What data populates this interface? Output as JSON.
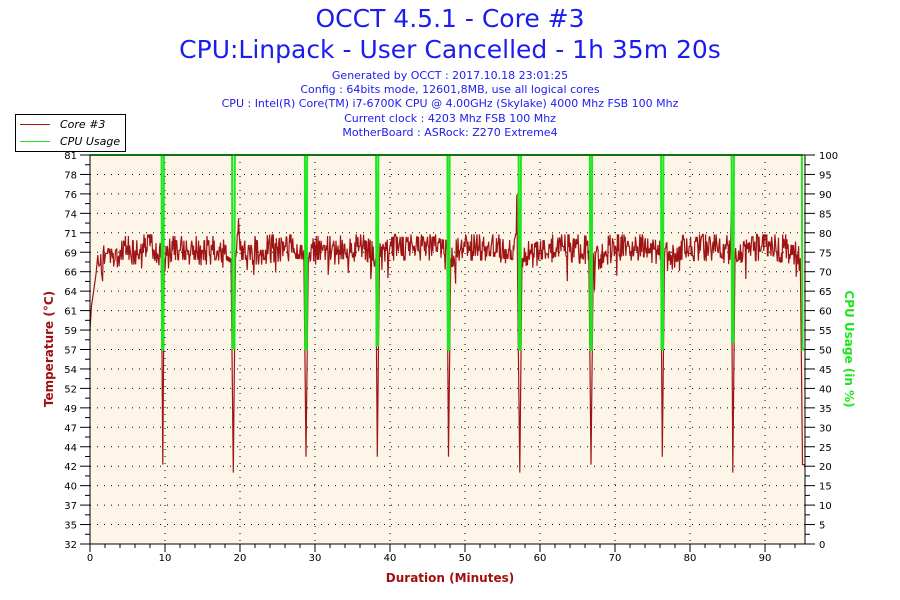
{
  "title": "OCCT 4.5.1 - Core #3",
  "subtitle": "CPU:Linpack - User Cancelled - 1h 35m 20s",
  "info": [
    "Generated by OCCT : 2017.10.18 23:01:25",
    "Config : 64bits mode, 12601,8MB, use all logical cores",
    "CPU : Intel(R) Core(TM) i7-6700K CPU @ 4.00GHz (Skylake) 4000 Mhz FSB 100 Mhz",
    "Current clock : 4203 Mhz FSB 100 Mhz",
    "MotherBoard : ASRock: Z270 Extreme4"
  ],
  "colors": {
    "temp": "#9e1414",
    "cpu": "#1ee61e",
    "text": "#1c1cf0",
    "plot_bg": "#fdf6e8"
  },
  "chart_data": {
    "type": "line",
    "xlabel": "Duration (Minutes)",
    "ylabel": "Temperature (°C)",
    "y2label": "CPU Usage (in %)",
    "xlim": [
      0,
      95.33
    ],
    "ylim": [
      32,
      81
    ],
    "y2lim": [
      0,
      100
    ],
    "grid": true,
    "legend_position": "top-left",
    "x_ticks": [
      "0",
      "10",
      "20",
      "30",
      "40",
      "50",
      "60",
      "70",
      "80",
      "90"
    ],
    "y_ticks": [
      "81",
      "78",
      "76",
      "74",
      "71",
      "69",
      "66",
      "64",
      "61",
      "59",
      "57",
      "54",
      "52",
      "49",
      "47",
      "44",
      "42",
      "40",
      "37",
      "35",
      "32"
    ],
    "y2_ticks": [
      "100",
      "95",
      "90",
      "85",
      "80",
      "75",
      "70",
      "65",
      "60",
      "55",
      "50",
      "45",
      "40",
      "35",
      "30",
      "25",
      "20",
      "15",
      "10",
      "5",
      "0"
    ],
    "series": [
      {
        "name": "Core #3",
        "axis": "left",
        "points": [
          [
            0,
            59
          ],
          [
            0.2,
            62
          ],
          [
            0.5,
            64
          ],
          [
            0.8,
            66
          ],
          [
            1.2,
            67
          ],
          [
            2,
            68
          ],
          [
            3,
            68
          ],
          [
            4,
            69
          ],
          [
            6,
            69
          ],
          [
            8,
            69.5
          ],
          [
            9.5,
            68
          ],
          [
            9.7,
            42
          ],
          [
            9.9,
            68
          ],
          [
            11,
            69
          ],
          [
            14,
            69
          ],
          [
            17,
            69
          ],
          [
            18.8,
            68
          ],
          [
            19.1,
            41
          ],
          [
            19.4,
            68
          ],
          [
            19.8,
            73
          ],
          [
            20,
            69
          ],
          [
            23,
            69
          ],
          [
            26,
            69.5
          ],
          [
            28.5,
            69
          ],
          [
            28.8,
            43
          ],
          [
            29.1,
            68
          ],
          [
            30,
            69
          ],
          [
            33,
            69
          ],
          [
            36,
            69.5
          ],
          [
            38.1,
            68
          ],
          [
            38.3,
            43
          ],
          [
            38.6,
            68
          ],
          [
            40,
            69.5
          ],
          [
            43,
            69.5
          ],
          [
            46,
            69.5
          ],
          [
            47.6,
            69
          ],
          [
            47.8,
            43
          ],
          [
            48.1,
            68
          ],
          [
            50,
            69.5
          ],
          [
            53,
            69.5
          ],
          [
            56.5,
            69
          ],
          [
            56.9,
            76
          ],
          [
            57.1,
            57
          ],
          [
            57.3,
            41
          ],
          [
            57.6,
            68
          ],
          [
            60,
            69
          ],
          [
            63,
            69.5
          ],
          [
            66.5,
            69
          ],
          [
            66.8,
            42
          ],
          [
            67.1,
            68
          ],
          [
            70,
            69.5
          ],
          [
            73,
            69.5
          ],
          [
            76.1,
            69
          ],
          [
            76.3,
            43
          ],
          [
            76.6,
            68
          ],
          [
            80,
            69.5
          ],
          [
            83,
            69.5
          ],
          [
            85.4,
            69
          ],
          [
            85.5,
            74
          ],
          [
            85.7,
            41
          ],
          [
            86,
            68
          ],
          [
            88,
            69.5
          ],
          [
            91,
            69.5
          ],
          [
            94,
            69
          ],
          [
            94.7,
            68
          ],
          [
            95,
            42
          ],
          [
            95.3,
            42
          ]
        ]
      },
      {
        "name": "CPU Usage",
        "axis": "right",
        "points": [
          [
            0,
            100
          ],
          [
            9.55,
            100
          ],
          [
            9.6,
            50
          ],
          [
            9.8,
            50
          ],
          [
            9.85,
            100
          ],
          [
            18.95,
            100
          ],
          [
            19.0,
            50
          ],
          [
            19.2,
            60
          ],
          [
            19.25,
            50
          ],
          [
            19.3,
            100
          ],
          [
            28.65,
            100
          ],
          [
            28.7,
            50
          ],
          [
            28.9,
            50
          ],
          [
            28.95,
            100
          ],
          [
            38.15,
            100
          ],
          [
            38.2,
            51
          ],
          [
            38.4,
            51
          ],
          [
            38.45,
            100
          ],
          [
            47.65,
            100
          ],
          [
            47.7,
            50
          ],
          [
            47.9,
            50
          ],
          [
            47.95,
            100
          ],
          [
            57.15,
            100
          ],
          [
            57.2,
            50
          ],
          [
            57.4,
            50
          ],
          [
            57.45,
            100
          ],
          [
            66.65,
            100
          ],
          [
            66.7,
            50
          ],
          [
            66.9,
            50
          ],
          [
            66.95,
            100
          ],
          [
            76.15,
            100
          ],
          [
            76.2,
            50
          ],
          [
            76.4,
            50
          ],
          [
            76.45,
            100
          ],
          [
            85.55,
            100
          ],
          [
            85.6,
            52
          ],
          [
            85.8,
            52
          ],
          [
            85.85,
            100
          ],
          [
            94.9,
            100
          ],
          [
            95.0,
            50
          ],
          [
            95.33,
            50
          ]
        ]
      }
    ]
  }
}
